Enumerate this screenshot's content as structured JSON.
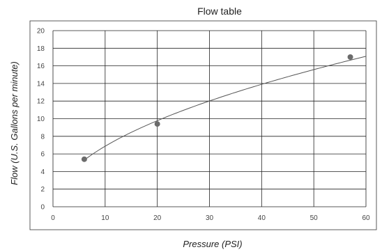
{
  "chart_data": {
    "type": "scatter",
    "title": "Flow table",
    "xlabel": "Pressure (PSI)",
    "ylabel": "Flow (U.S. Gallons per minute)",
    "xlim": [
      0,
      60
    ],
    "ylim": [
      0,
      20
    ],
    "xticks": [
      0,
      10,
      20,
      30,
      40,
      50,
      60
    ],
    "yticks": [
      0,
      2,
      4,
      6,
      8,
      10,
      12,
      14,
      16,
      18,
      20
    ],
    "grid": true,
    "trendline": "power",
    "series": [
      {
        "x": [
          6,
          20,
          57
        ],
        "y": [
          5.4,
          9.4,
          17.0
        ]
      }
    ],
    "colors": {
      "points": "#6b6b6b",
      "line": "#555555",
      "grid": "#222222",
      "frame": "#333333"
    }
  }
}
